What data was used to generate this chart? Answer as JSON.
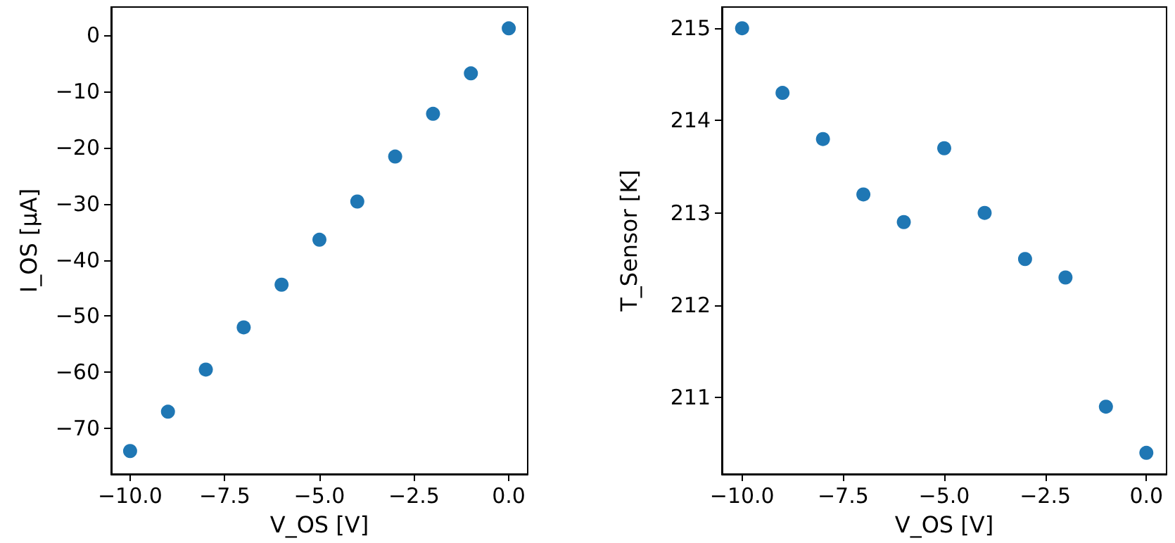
{
  "chart_data": [
    {
      "type": "scatter",
      "xlabel": "V_OS [V]",
      "ylabel": "I_OS [µA]",
      "marker": "circle",
      "grid": false,
      "x": [
        -10,
        -9,
        -8,
        -7,
        -6,
        -5,
        -4,
        -3,
        -2,
        -1,
        0
      ],
      "series": [
        {
          "color": "#1f77b4",
          "values": [
            -74,
            -67,
            -59.5,
            -52,
            -44.4,
            -36.4,
            -29.6,
            -21.6,
            -14,
            -6.8,
            1.2
          ]
        }
      ],
      "xlim": [
        -10.5,
        0.5
      ],
      "ylim": [
        -78.1,
        5
      ],
      "xticks": [
        {
          "value": -10,
          "label": "−10.0"
        },
        {
          "value": -7.5,
          "label": "−7.5"
        },
        {
          "value": -5,
          "label": "−5.0"
        },
        {
          "value": -2.5,
          "label": "−2.5"
        },
        {
          "value": 0,
          "label": "0.0"
        }
      ],
      "yticks": [
        {
          "value": -70,
          "label": "−70"
        },
        {
          "value": -60,
          "label": "−60"
        },
        {
          "value": -50,
          "label": "−50"
        },
        {
          "value": -40,
          "label": "−40"
        },
        {
          "value": -30,
          "label": "−30"
        },
        {
          "value": -20,
          "label": "−20"
        },
        {
          "value": -10,
          "label": "−10"
        },
        0
      ]
    },
    {
      "type": "scatter",
      "xlabel": "V_OS [V]",
      "ylabel": "T_Sensor [K]",
      "marker": "circle",
      "grid": false,
      "x": [
        -10,
        -9,
        -8,
        -7,
        -6,
        -5,
        -4,
        -3,
        -2,
        -1,
        0
      ],
      "series": [
        {
          "color": "#1f77b4",
          "values": [
            215,
            214.3,
            213.8,
            213.2,
            212.9,
            213.7,
            213,
            212.5,
            212.3,
            210.9,
            210.4
          ]
        }
      ],
      "xlim": [
        -10.5,
        0.5
      ],
      "ylim": [
        210.17,
        215.23
      ],
      "xticks": [
        {
          "value": -10,
          "label": "−10.0"
        },
        {
          "value": -7.5,
          "label": "−7.5"
        },
        {
          "value": -5,
          "label": "−5.0"
        },
        {
          "value": -2.5,
          "label": "−2.5"
        },
        {
          "value": 0,
          "label": "0.0"
        }
      ],
      "yticks": [
        211,
        212,
        213,
        214,
        215
      ]
    }
  ]
}
